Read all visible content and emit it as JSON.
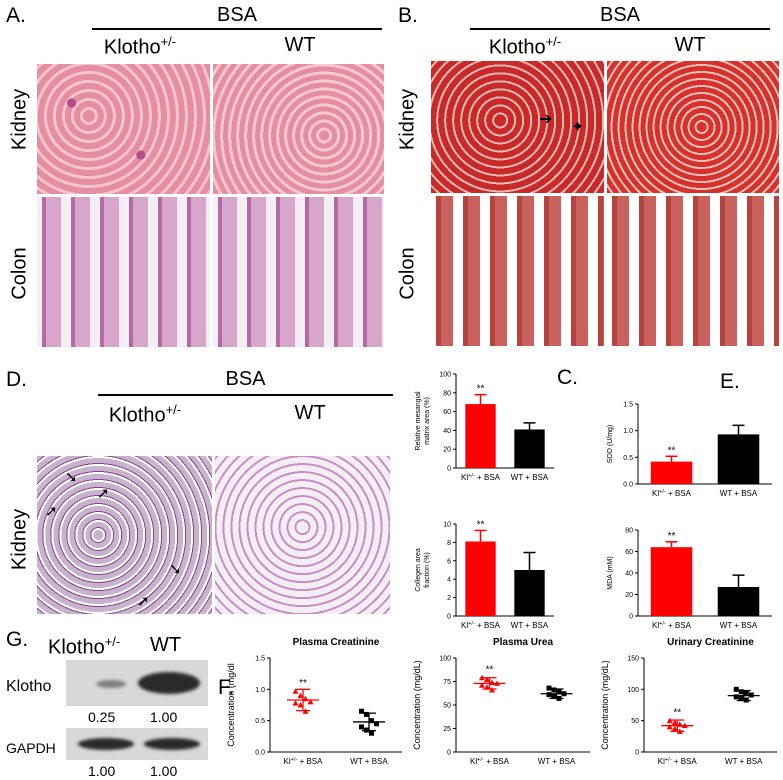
{
  "panels": {
    "A": {
      "label": "A.",
      "treatment": "BSA",
      "col1": "Klotho",
      "col1_sup": "+/-",
      "col2": "WT",
      "row1": "Kidney",
      "row2": "Colon"
    },
    "B": {
      "label": "B.",
      "treatment": "BSA",
      "col1": "Klotho",
      "col1_sup": "+/-",
      "col2": "WT",
      "row1": "Kidney",
      "row2": "Colon"
    },
    "D": {
      "label": "D.",
      "treatment": "BSA",
      "col1": "Klotho",
      "col1_sup": "+/-",
      "col2": "WT",
      "row1": "Kidney"
    },
    "C": {
      "label": "C."
    },
    "E": {
      "label": "E."
    },
    "F": {
      "label": "F."
    },
    "G": {
      "label": "G.",
      "col1": "Klotho",
      "col1_sup": "+/-",
      "col2": "WT",
      "row1": "Klotho",
      "row1_vals": [
        "0.25",
        "1.00"
      ],
      "row2": "GAPDH",
      "row2_vals": [
        "1.00",
        "1.00"
      ]
    }
  },
  "chart_data": [
    {
      "id": "C1",
      "type": "bar",
      "categories": [
        "Kl+/- + BSA",
        "WT + BSA"
      ],
      "values": [
        68,
        41
      ],
      "errors": [
        10,
        7
      ],
      "colors": [
        "#ff0000",
        "#000000"
      ],
      "ylabel": "Relative mesangial matrix area (%)",
      "ylim": [
        0,
        100
      ],
      "yticks": [
        0,
        20,
        40,
        60,
        80,
        100
      ],
      "annotation": "**"
    },
    {
      "id": "C2",
      "type": "bar",
      "categories": [
        "Kl+/- + BSA",
        "WT + BSA"
      ],
      "values": [
        8.1,
        5.0
      ],
      "errors": [
        1.2,
        1.9
      ],
      "colors": [
        "#ff0000",
        "#000000"
      ],
      "ylabel": "Collegen area fraction (%)",
      "ylim": [
        0,
        10
      ],
      "yticks": [
        0,
        2,
        4,
        6,
        8,
        10
      ],
      "annotation": "**"
    },
    {
      "id": "E1",
      "type": "bar",
      "categories": [
        "Kl+/- + BSA",
        "WT + BSA"
      ],
      "values": [
        0.42,
        0.93
      ],
      "errors": [
        0.1,
        0.17
      ],
      "colors": [
        "#ff0000",
        "#000000"
      ],
      "ylabel": "SOD (U/mg)",
      "ylim": [
        0,
        1.5
      ],
      "yticks": [
        0.0,
        0.5,
        1.0,
        1.5
      ],
      "annotation": "**"
    },
    {
      "id": "E2",
      "type": "bar",
      "categories": [
        "Kl+/- + BSA",
        "WT + BSA"
      ],
      "values": [
        64,
        27
      ],
      "errors": [
        5,
        11
      ],
      "colors": [
        "#ff0000",
        "#000000"
      ],
      "ylabel": "MDA (mM)",
      "ylim": [
        0,
        80
      ],
      "yticks": [
        0,
        20,
        40,
        60,
        80
      ],
      "annotation": "**"
    },
    {
      "id": "F1",
      "type": "scatter",
      "title": "Plasma Creatinine",
      "categories": [
        "Kl+/- + BSA",
        "WT + BSA"
      ],
      "points": [
        [
          0.97,
          0.9,
          0.85,
          0.8,
          0.78,
          0.75,
          0.65
        ],
        [
          0.65,
          0.6,
          0.5,
          0.45,
          0.4,
          0.35,
          0.3
        ]
      ],
      "means": [
        0.83,
        0.48
      ],
      "sd": [
        0.17,
        0.14
      ],
      "colors": [
        "#ff0000",
        "#000000"
      ],
      "ylabel": "Concentration (mg/dl",
      "ylim": [
        0,
        1.5
      ],
      "yticks": [
        0.0,
        0.5,
        1.0,
        1.5
      ],
      "annotation": "**"
    },
    {
      "id": "F2",
      "type": "scatter",
      "title": "Plasma Urea",
      "categories": [
        "Kl+/- + BSA",
        "WT + BSA"
      ],
      "points": [
        [
          79,
          77,
          74,
          73,
          71,
          69,
          66
        ],
        [
          68,
          66,
          64,
          62,
          61,
          59,
          57
        ]
      ],
      "means": [
        73,
        62
      ],
      "sd": [
        6,
        5
      ],
      "colors": [
        "#ff0000",
        "#000000"
      ],
      "ylabel": "Concentration (mg/dL)",
      "ylim": [
        0,
        100
      ],
      "yticks": [
        0,
        25,
        50,
        75,
        100
      ],
      "annotation": "**"
    },
    {
      "id": "F3",
      "type": "scatter",
      "title": "Urinary Creatinine",
      "categories": [
        "Kl+/- + BSA",
        "WT + BSA"
      ],
      "points": [
        [
          50,
          47,
          44,
          42,
          40,
          37,
          33
        ],
        [
          100,
          96,
          94,
          91,
          88,
          86,
          83
        ]
      ],
      "means": [
        42,
        90
      ],
      "sd": [
        9,
        8
      ],
      "colors": [
        "#ff0000",
        "#000000"
      ],
      "ylabel": "Concentration (mg/dL)",
      "ylim": [
        0,
        150
      ],
      "yticks": [
        0,
        50,
        100,
        150
      ],
      "annotation": "**"
    }
  ]
}
